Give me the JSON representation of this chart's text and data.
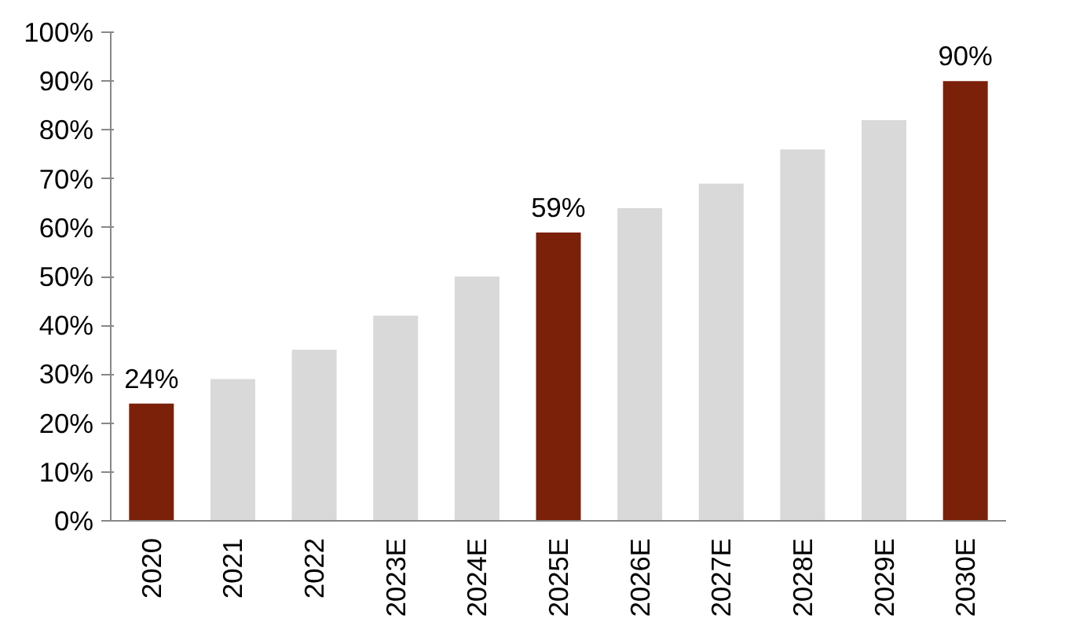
{
  "chart_data": {
    "type": "bar",
    "categories": [
      "2020",
      "2021",
      "2022",
      "2023E",
      "2024E",
      "2025E",
      "2026E",
      "2027E",
      "2028E",
      "2029E",
      "2030E"
    ],
    "values": [
      24,
      29,
      35,
      42,
      50,
      59,
      64,
      69,
      76,
      82,
      90
    ],
    "colors": [
      "#7b2009",
      "#d9d9d9",
      "#d9d9d9",
      "#d9d9d9",
      "#d9d9d9",
      "#7b2009",
      "#d9d9d9",
      "#d9d9d9",
      "#d9d9d9",
      "#d9d9d9",
      "#7b2009"
    ],
    "value_labels": [
      "24%",
      null,
      null,
      null,
      null,
      "59%",
      null,
      null,
      null,
      null,
      "90%"
    ],
    "ylim": [
      0,
      100
    ],
    "yticks": [
      {
        "value": 0,
        "label": "0%"
      },
      {
        "value": 10,
        "label": "10%"
      },
      {
        "value": 20,
        "label": "20%"
      },
      {
        "value": 30,
        "label": "30%"
      },
      {
        "value": 40,
        "label": "40%"
      },
      {
        "value": 50,
        "label": "50%"
      },
      {
        "value": 60,
        "label": "60%"
      },
      {
        "value": 70,
        "label": "70%"
      },
      {
        "value": 80,
        "label": "80%"
      },
      {
        "value": 90,
        "label": "90%"
      },
      {
        "value": 100,
        "label": "100%"
      }
    ],
    "grid": false
  }
}
